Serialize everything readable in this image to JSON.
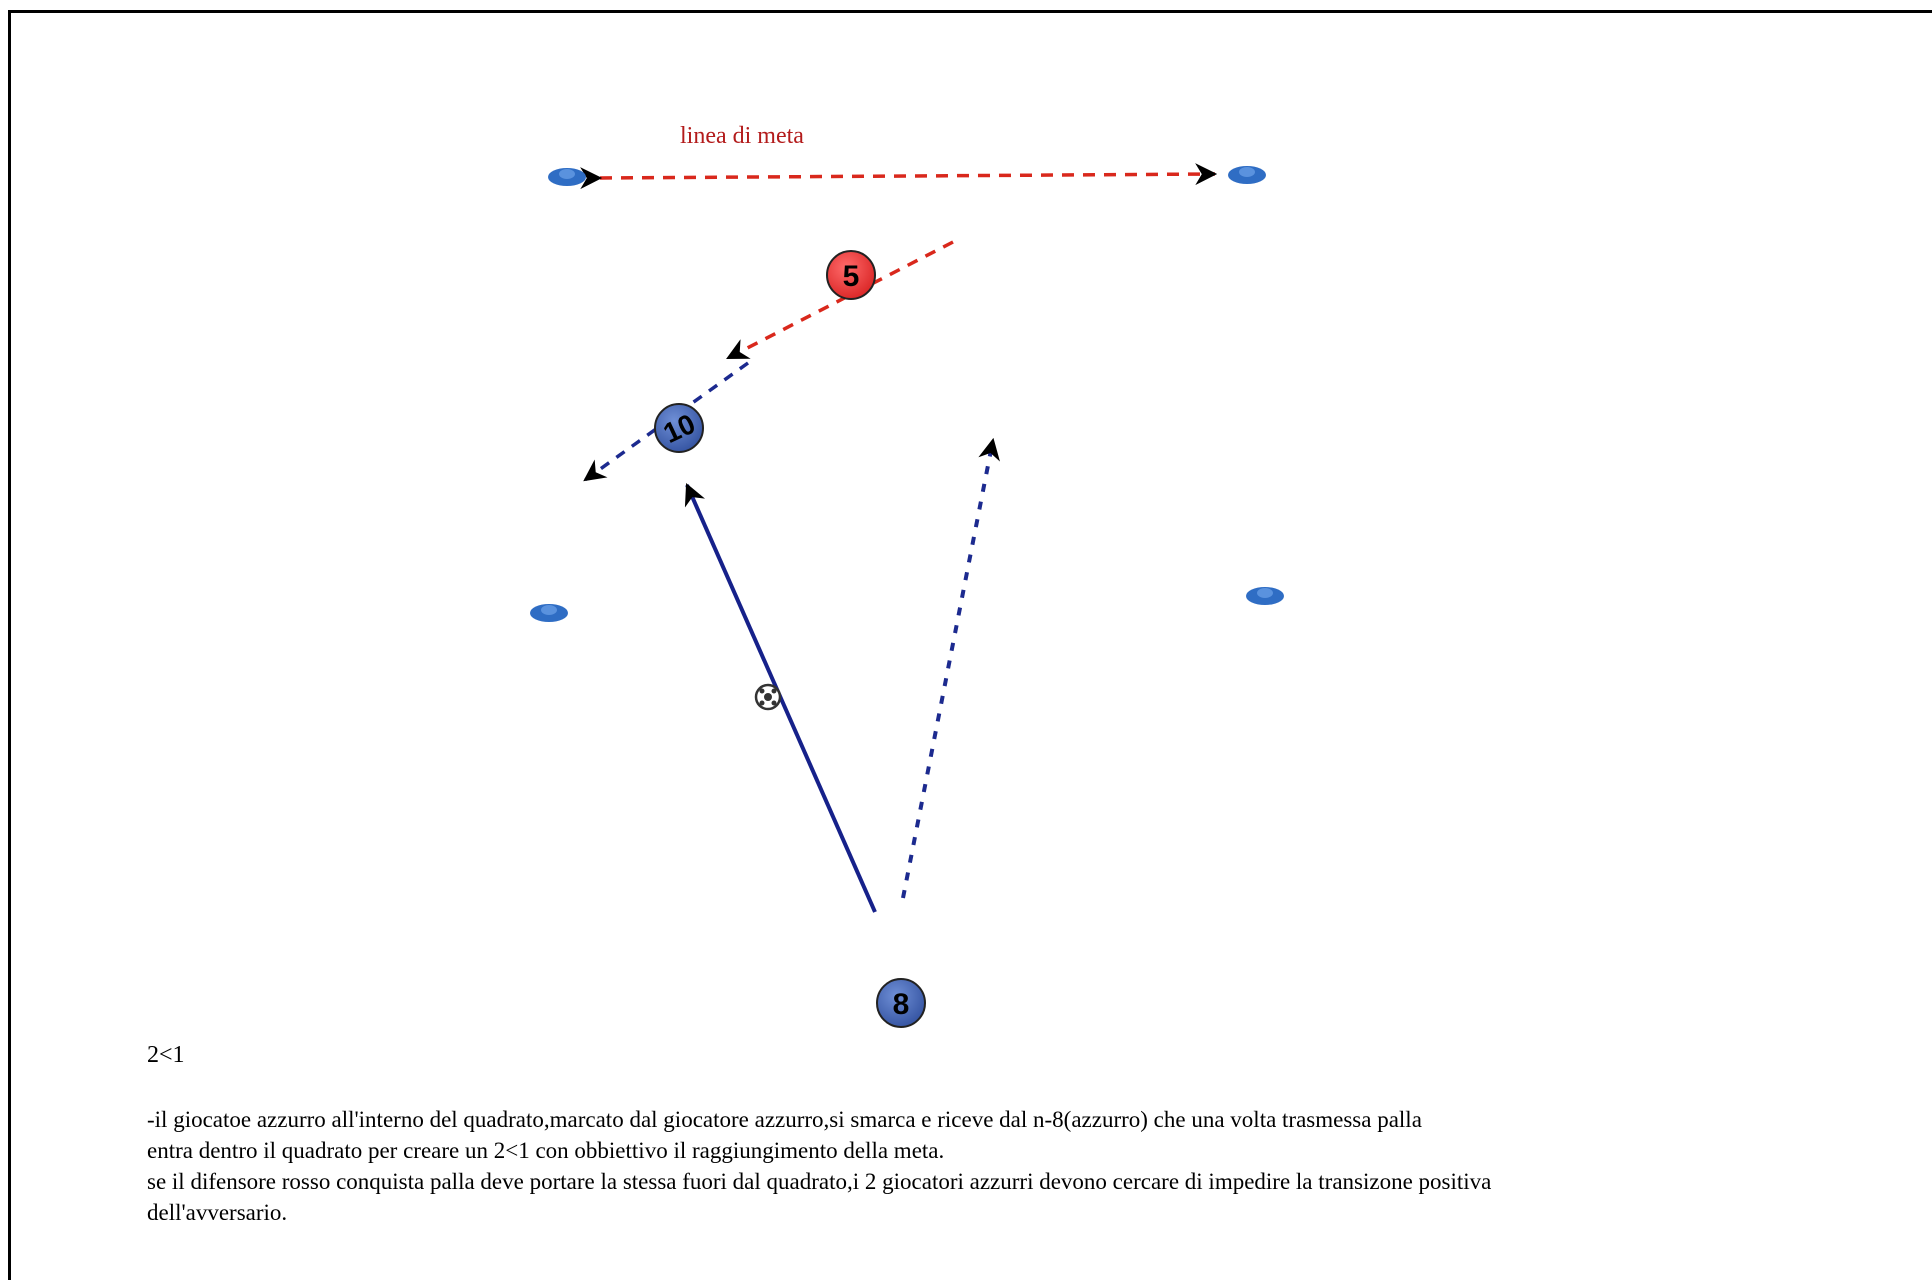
{
  "field": {
    "goal_line_label": "linea di meta",
    "colors": {
      "blue_player": "#3d5ca8",
      "red_player": "#e83434",
      "cone": "#2f6dc4",
      "red_dash": "#d9281c",
      "blue_dash": "#1c2a8f",
      "pass_line": "#16218a"
    },
    "cones": [
      {
        "name": "cone-top-left"
      },
      {
        "name": "cone-top-right"
      },
      {
        "name": "cone-mid-left"
      },
      {
        "name": "cone-mid-right"
      }
    ],
    "players": [
      {
        "name": "player-red-5",
        "team": "red",
        "number": "5"
      },
      {
        "name": "player-blue-10",
        "team": "blue",
        "number": "10"
      },
      {
        "name": "player-blue-8",
        "team": "blue",
        "number": "8"
      }
    ],
    "ball_icon": "soccer-ball-icon"
  },
  "caption": {
    "code": "2<1",
    "lines": [
      "-il giocatoe azzurro all'interno del quadrato,marcato dal giocatore azzurro,si smarca e riceve dal n-8(azzurro) che una volta trasmessa palla",
      "entra dentro il quadrato per creare un 2<1 con obbiettivo il raggiungimento della meta.",
      "se il difensore rosso conquista palla deve portare la stessa fuori dal quadrato,i 2 giocatori azzurri devono cercare di impedire la transizone positiva",
      "dell'avversario."
    ]
  }
}
